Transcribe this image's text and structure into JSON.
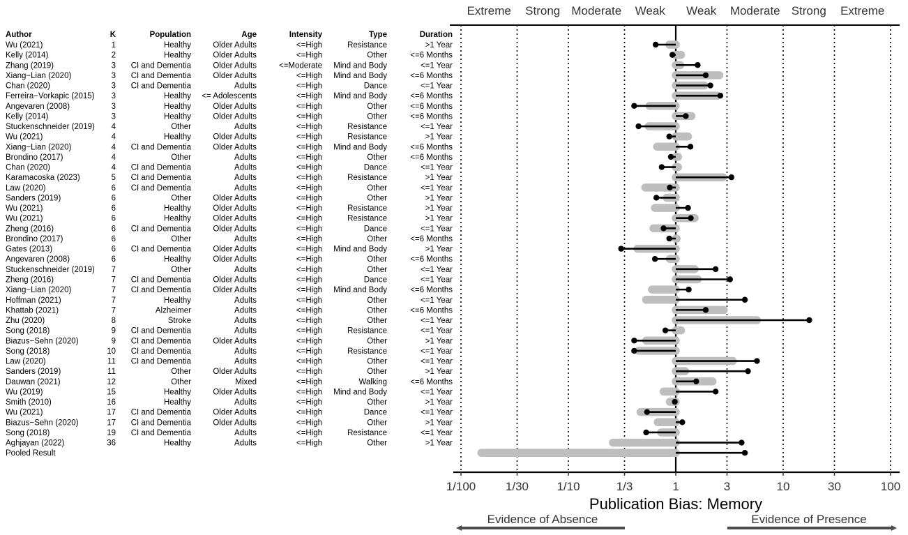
{
  "chart_data": {
    "type": "forest",
    "xlabel": "Publication Bias: Memory",
    "x_scale": "log",
    "xlim": [
      0.01,
      100
    ],
    "x_ticks": [
      {
        "value": 0.01,
        "label": "1/100"
      },
      {
        "value": 0.0333,
        "label": "1/30"
      },
      {
        "value": 0.1,
        "label": "1/10"
      },
      {
        "value": 0.3333,
        "label": "1/3"
      },
      {
        "value": 1,
        "label": "1"
      },
      {
        "value": 3,
        "label": "3"
      },
      {
        "value": 10,
        "label": "10"
      },
      {
        "value": 30,
        "label": "30"
      },
      {
        "value": 100,
        "label": "100"
      }
    ],
    "strength_labels": [
      {
        "label": "Extreme",
        "from": 0.01,
        "to": 0.0333
      },
      {
        "label": "Strong",
        "from": 0.0333,
        "to": 0.1
      },
      {
        "label": "Moderate",
        "from": 0.1,
        "to": 0.3333
      },
      {
        "label": "Weak",
        "from": 0.3333,
        "to": 1
      },
      {
        "label": "Weak",
        "from": 1,
        "to": 3
      },
      {
        "label": "Moderate",
        "from": 3,
        "to": 10
      },
      {
        "label": "Strong",
        "from": 10,
        "to": 30
      },
      {
        "label": "Extreme",
        "from": 30,
        "to": 100
      }
    ],
    "evidence_labels": {
      "left": "Evidence of Absence",
      "right": "Evidence of Presence"
    },
    "columns": [
      "Author",
      "K",
      "Population",
      "Age",
      "Intensity",
      "Type",
      "Duration"
    ],
    "series": [
      {
        "name": "gray bar",
        "color": "#bebebe"
      },
      {
        "name": "black lollipop",
        "color": "#000000"
      }
    ],
    "rows": [
      {
        "author": "Wu (2021)",
        "k": "1",
        "population": "Healthy",
        "age": "Older Adults",
        "intensity": "<=High",
        "type": "Resistance",
        "duration": ">1 Year",
        "gray": 0.87,
        "black": 0.65
      },
      {
        "author": "Kelly (2014)",
        "k": "2",
        "population": "Healthy",
        "age": "Older Adults",
        "intensity": "<=High",
        "type": "Other",
        "duration": "<=6 Months",
        "gray": 1.12,
        "black": 0.93
      },
      {
        "author": "Zhang (2019)",
        "k": "3",
        "population": "CI and Dementia",
        "age": "Older Adults",
        "intensity": "<=Moderate",
        "type": "Mind and Body",
        "duration": "<=1 Year",
        "gray": 1.1,
        "black": 1.6
      },
      {
        "author": "Xiang−Lian (2020)",
        "k": "3",
        "population": "CI and Dementia",
        "age": "Older Adults",
        "intensity": "<=High",
        "type": "Mind and Body",
        "duration": "<=6 Months",
        "gray": 2.55,
        "black": 1.9
      },
      {
        "author": "Chan (2020)",
        "k": "3",
        "population": "CI and Dementia",
        "age": "Adults",
        "intensity": "<=High",
        "type": "Dance",
        "duration": "<=1 Year",
        "gray": 1.85,
        "black": 2.1
      },
      {
        "author": "Ferreira−Vorkapic (2015)",
        "k": "3",
        "population": "Healthy",
        "age": "<= Adolescents",
        "intensity": "<=High",
        "type": "Mind and Body",
        "duration": "<=6 Months",
        "gray": 2.45,
        "black": 2.6
      },
      {
        "author": "Angevaren (2008)",
        "k": "3",
        "population": "Healthy",
        "age": "Older Adults",
        "intensity": "<=High",
        "type": "Other",
        "duration": "<=6 Months",
        "gray": 0.57,
        "black": 0.41
      },
      {
        "author": "Kelly (2014)",
        "k": "3",
        "population": "Healthy",
        "age": "Older Adults",
        "intensity": "<=High",
        "type": "Other",
        "duration": "<=6 Months",
        "gray": 1.4,
        "black": 1.24
      },
      {
        "author": "Stuckenschneider (2019)",
        "k": "4",
        "population": "Other",
        "age": "Adults",
        "intensity": "<=High",
        "type": "Resistance",
        "duration": "<=1 Year",
        "gray": 0.56,
        "black": 0.45
      },
      {
        "author": "Wu (2021)",
        "k": "4",
        "population": "Healthy",
        "age": "Older Adults",
        "intensity": "<=High",
        "type": "Resistance",
        "duration": ">1 Year",
        "gray": 1.3,
        "black": 0.87
      },
      {
        "author": "Xiang−Lian (2020)",
        "k": "4",
        "population": "CI and Dementia",
        "age": "Older Adults",
        "intensity": "<=High",
        "type": "Mind and Body",
        "duration": "<=6 Months",
        "gray": 0.67,
        "black": 1.37
      },
      {
        "author": "Brondino (2017)",
        "k": "4",
        "population": "Other",
        "age": "Adults",
        "intensity": "<=High",
        "type": "Other",
        "duration": "<=6 Months",
        "gray": 1.05,
        "black": 0.9
      },
      {
        "author": "Chan (2020)",
        "k": "4",
        "population": "CI and Dementia",
        "age": "Adults",
        "intensity": "<=High",
        "type": "Dance",
        "duration": "<=1 Year",
        "gray": 1.05,
        "black": 0.74
      },
      {
        "author": "Karamacoska (2023)",
        "k": "5",
        "population": "CI and Dementia",
        "age": "Adults",
        "intensity": "<=High",
        "type": "Resistance",
        "duration": ">1 Year",
        "gray": 2.75,
        "black": 3.3
      },
      {
        "author": "Law (2020)",
        "k": "6",
        "population": "CI and Dementia",
        "age": "Adults",
        "intensity": "<=High",
        "type": "Other",
        "duration": "<=1 Year",
        "gray": 0.52,
        "black": 0.88
      },
      {
        "author": "Sanders (2019)",
        "k": "6",
        "population": "Other",
        "age": "Older Adults",
        "intensity": "<=High",
        "type": "Other",
        "duration": ">1 Year",
        "gray": 0.82,
        "black": 0.66
      },
      {
        "author": "Wu (2021)",
        "k": "6",
        "population": "Healthy",
        "age": "Older Adults",
        "intensity": "<=High",
        "type": "Resistance",
        "duration": ">1 Year",
        "gray": 0.64,
        "black": 1.3
      },
      {
        "author": "Wu (2021)",
        "k": "6",
        "population": "Healthy",
        "age": "Older Adults",
        "intensity": "<=High",
        "type": "Resistance",
        "duration": ">1 Year",
        "gray": 1.5,
        "black": 1.38
      },
      {
        "author": "Zheng (2016)",
        "k": "6",
        "population": "CI and Dementia",
        "age": "Older Adults",
        "intensity": "<=High",
        "type": "Dance",
        "duration": "<=1 Year",
        "gray": 0.62,
        "black": 0.77
      },
      {
        "author": "Brondino (2017)",
        "k": "6",
        "population": "Other",
        "age": "Adults",
        "intensity": "<=High",
        "type": "Other",
        "duration": "<=6 Months",
        "gray": 1.02,
        "black": 0.87
      },
      {
        "author": "Gates (2013)",
        "k": "6",
        "population": "CI and Dementia",
        "age": "Older Adults",
        "intensity": "<=High",
        "type": "Mind and Body",
        "duration": ">1 Year",
        "gray": 0.44,
        "black": 0.31
      },
      {
        "author": "Angevaren (2008)",
        "k": "6",
        "population": "Healthy",
        "age": "Older Adults",
        "intensity": "<=High",
        "type": "Other",
        "duration": "<=6 Months",
        "gray": 0.88,
        "black": 0.64
      },
      {
        "author": "Stuckenschneider (2019)",
        "k": "7",
        "population": "Other",
        "age": "Adults",
        "intensity": "<=High",
        "type": "Other",
        "duration": "<=1 Year",
        "gray": 1.5,
        "black": 2.35
      },
      {
        "author": "Zheng (2016)",
        "k": "7",
        "population": "CI and Dementia",
        "age": "Older Adults",
        "intensity": "<=High",
        "type": "Dance",
        "duration": "<=1 Year",
        "gray": 1.6,
        "black": 3.2
      },
      {
        "author": "Xiang−Lian (2020)",
        "k": "7",
        "population": "CI and Dementia",
        "age": "Older Adults",
        "intensity": "<=High",
        "type": "Mind and Body",
        "duration": "<=6 Months",
        "gray": 0.6,
        "black": 1.32
      },
      {
        "author": "Hoffman (2021)",
        "k": "7",
        "population": "Healthy",
        "age": "Adults",
        "intensity": "<=High",
        "type": "Other",
        "duration": "<=1 Year",
        "gray": 0.53,
        "black": 4.4
      },
      {
        "author": "Khattab (2021)",
        "k": "7",
        "population": "Alzheimer",
        "age": "Adults",
        "intensity": "<=High",
        "type": "Other",
        "duration": "<=6 Months",
        "gray": 2.8,
        "black": 1.9
      },
      {
        "author": "Zhu (2020)",
        "k": "8",
        "population": "Stroke",
        "age": "Adults",
        "intensity": "<=High",
        "type": "Other",
        "duration": "<=1 Year",
        "gray": 5.7,
        "black": 17.5
      },
      {
        "author": "Song (2018)",
        "k": "9",
        "population": "CI and Dementia",
        "age": "Adults",
        "intensity": "<=High",
        "type": "Resistance",
        "duration": "<=1 Year",
        "gray": 1.12,
        "black": 0.8
      },
      {
        "author": "Biazus−Sehn (2020)",
        "k": "9",
        "population": "CI and Dementia",
        "age": "Older Adults",
        "intensity": "<=High",
        "type": "Other",
        "duration": ">1 Year",
        "gray": 0.53,
        "black": 0.41
      },
      {
        "author": "Song (2018)",
        "k": "10",
        "population": "CI and Dementia",
        "age": "Adults",
        "intensity": "<=High",
        "type": "Resistance",
        "duration": "<=1 Year",
        "gray": 0.45,
        "black": 0.41
      },
      {
        "author": "Law (2020)",
        "k": "11",
        "population": "CI and Dementia",
        "age": "Adults",
        "intensity": "<=High",
        "type": "Other",
        "duration": "<=1 Year",
        "gray": 3.4,
        "black": 5.7
      },
      {
        "author": "Sanders (2019)",
        "k": "11",
        "population": "Other",
        "age": "Older Adults",
        "intensity": "<=High",
        "type": "Other",
        "duration": ">1 Year",
        "gray": 1.22,
        "black": 4.7
      },
      {
        "author": "Dauwan (2021)",
        "k": "12",
        "population": "Other",
        "age": "Mixed",
        "intensity": "<=High",
        "type": "Walking",
        "duration": "<=6 Months",
        "gray": 2.2,
        "black": 1.55
      },
      {
        "author": "Wu (2019)",
        "k": "15",
        "population": "Healthy",
        "age": "Older Adults",
        "intensity": "<=High",
        "type": "Mind and Body",
        "duration": "<=1 Year",
        "gray": 0.77,
        "black": 2.35
      },
      {
        "author": "Smith (2010)",
        "k": "16",
        "population": "Healthy",
        "age": "Adults",
        "intensity": "<=High",
        "type": "Other",
        "duration": ">1 Year",
        "gray": 0.88,
        "black": 0.98
      },
      {
        "author": "Wu (2021)",
        "k": "17",
        "population": "CI and Dementia",
        "age": "Older Adults",
        "intensity": "<=High",
        "type": "Dance",
        "duration": "<=1 Year",
        "gray": 0.47,
        "black": 0.54
      },
      {
        "author": "Biazus−Sehn (2020)",
        "k": "17",
        "population": "CI and Dementia",
        "age": "Older Adults",
        "intensity": "<=High",
        "type": "Other",
        "duration": ">1 Year",
        "gray": 0.68,
        "black": 1.15
      },
      {
        "author": "Song (2018)",
        "k": "19",
        "population": "CI and Dementia",
        "age": "Adults",
        "intensity": "<=High",
        "type": "Resistance",
        "duration": "<=1 Year",
        "gray": 0.73,
        "black": 0.53
      },
      {
        "author": "Aghjayan (2022)",
        "k": "36",
        "population": "Healthy",
        "age": "Adults",
        "intensity": "<=High",
        "type": "Other",
        "duration": ">1 Year",
        "gray": 0.26,
        "black": 4.1
      }
    ],
    "pooled": {
      "author": "Pooled Result",
      "gray": 0.0155,
      "black": 4.4
    }
  }
}
